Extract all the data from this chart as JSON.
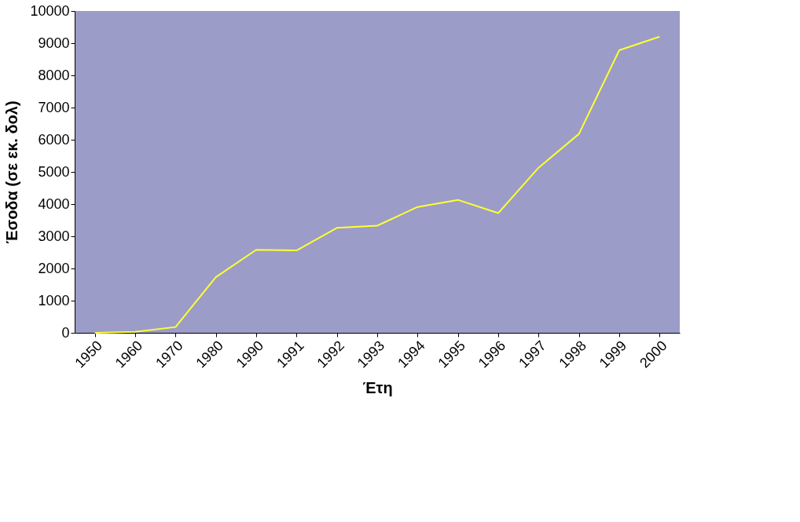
{
  "chart_data": {
    "type": "line",
    "xlabel": "Έτη",
    "ylabel": "Έσοδα (σε εκ. δολ)",
    "categories": [
      "1950",
      "1960",
      "1970",
      "1980",
      "1990",
      "1991",
      "1992",
      "1993",
      "1994",
      "1995",
      "1996",
      "1997",
      "1998",
      "1999",
      "2000"
    ],
    "series": [
      {
        "color": "#ffff33",
        "values": [
          0,
          30,
          180,
          1730,
          2580,
          2560,
          3260,
          3330,
          3910,
          4130,
          3720,
          5130,
          6180,
          8780,
          9200
        ]
      }
    ],
    "ylim": [
      0,
      10000
    ],
    "yticks": [
      0,
      1000,
      2000,
      3000,
      4000,
      5000,
      6000,
      7000,
      8000,
      9000,
      10000
    ],
    "grid": false,
    "marker": "none",
    "line_style": "solid"
  }
}
